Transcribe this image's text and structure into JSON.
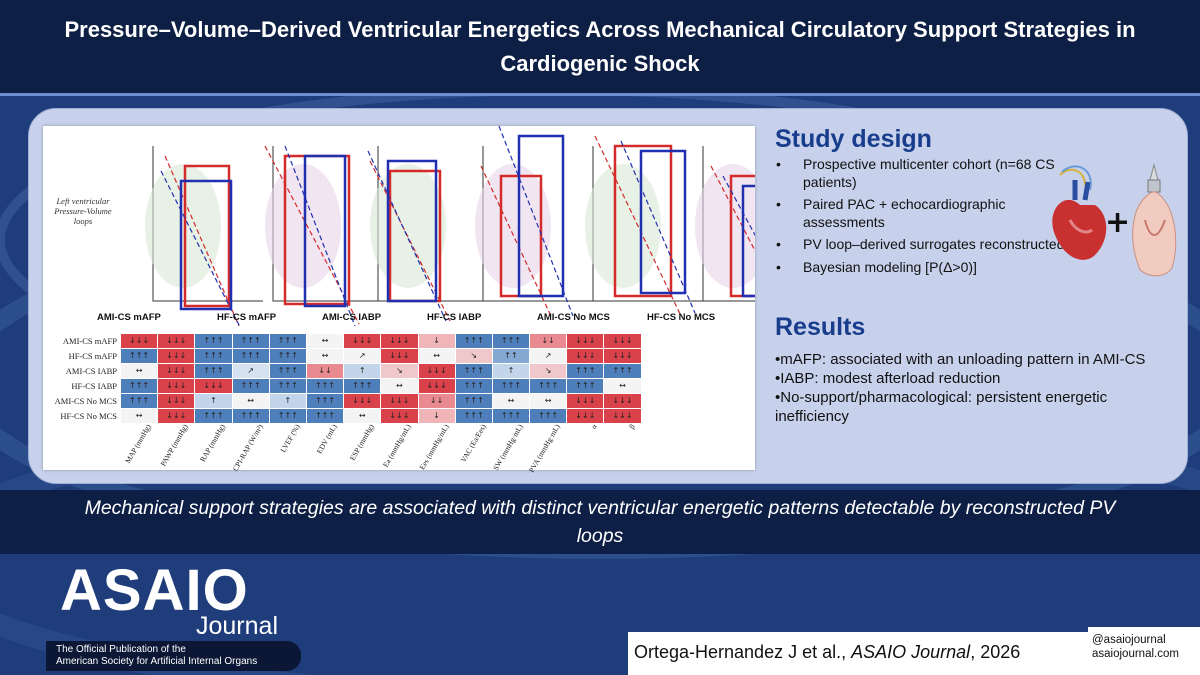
{
  "header": {
    "title": "Pressure–Volume–Derived Ventricular Energetics Across Mechanical Circulatory Support Strategies in Cardiogenic Shock"
  },
  "figure": {
    "lv_label": "Left ventricular Pressure-Volume loops",
    "loop_labels": [
      "AMI-CS mAFP",
      "HF-CS mAFP",
      "AMI-CS IABP",
      "HF-CS IABP",
      "AMI-CS No MCS",
      "HF-CS No MCS"
    ],
    "row_labels": [
      "AMI-CS mAFP",
      "HF-CS mAFP",
      "AMI-CS IABP",
      "HF-CS IABP",
      "AMI-CS No MCS",
      "HF-CS No MCS"
    ],
    "col_labels": [
      "MAP (mmHg)",
      "PAWP (mmHg)",
      "RAP (mmHg)",
      "CPI-RAP (W/m²)",
      "LVEF (%)",
      "EDV (mL)",
      "ESP (mmHg)",
      "Ea (mmHg/mL)",
      "Ees (mmHg/mL)",
      "VAC (Ea/Ees)",
      "SW (mmHg·mL)",
      "PVA (mmHg·mL)",
      "α",
      "β"
    ],
    "heatmap": [
      [
        {
          "t": "↓↓↓",
          "c": "#d9414b"
        },
        {
          "t": "↓↓↓",
          "c": "#d9414b"
        },
        {
          "t": "↑↑↑",
          "c": "#4e7fba"
        },
        {
          "t": "↑↑↑",
          "c": "#4e7fba"
        },
        {
          "t": "↑↑↑",
          "c": "#4e7fba"
        },
        {
          "t": "↔",
          "c": "#f4f4f4"
        },
        {
          "t": "↓↓↓",
          "c": "#d9414b"
        },
        {
          "t": "↓↓↓",
          "c": "#d9414b"
        },
        {
          "t": "↓",
          "c": "#f0b5b8"
        },
        {
          "t": "↑↑↑",
          "c": "#4e7fba"
        },
        {
          "t": "↑↑↑",
          "c": "#4e7fba"
        },
        {
          "t": "↓↓",
          "c": "#e98a90"
        },
        {
          "t": "↓↓↓",
          "c": "#d9414b"
        },
        {
          "t": "↓↓↓",
          "c": "#d9414b"
        }
      ],
      [
        {
          "t": "↑↑↑",
          "c": "#4e7fba"
        },
        {
          "t": "↓↓↓",
          "c": "#d9414b"
        },
        {
          "t": "↑↑↑",
          "c": "#4e7fba"
        },
        {
          "t": "↑↑↑",
          "c": "#4e7fba"
        },
        {
          "t": "↑↑↑",
          "c": "#4e7fba"
        },
        {
          "t": "↔",
          "c": "#f4f4f4"
        },
        {
          "t": "↗",
          "c": "#f4f4f4"
        },
        {
          "t": "↓↓↓",
          "c": "#d9414b"
        },
        {
          "t": "↔",
          "c": "#f4f4f4"
        },
        {
          "t": "↘",
          "c": "#f0c8cb"
        },
        {
          "t": "↑↑",
          "c": "#85a8d3"
        },
        {
          "t": "↗",
          "c": "#f4f4f4"
        },
        {
          "t": "↓↓↓",
          "c": "#d9414b"
        },
        {
          "t": "↓↓↓",
          "c": "#d9414b"
        }
      ],
      [
        {
          "t": "↔",
          "c": "#f4f4f4"
        },
        {
          "t": "↓↓↓",
          "c": "#d9414b"
        },
        {
          "t": "↑↑↑",
          "c": "#4e7fba"
        },
        {
          "t": "↗",
          "c": "#d6e2f0"
        },
        {
          "t": "↑↑↑",
          "c": "#4e7fba"
        },
        {
          "t": "↓↓",
          "c": "#e98a90"
        },
        {
          "t": "↑",
          "c": "#c3d5ea"
        },
        {
          "t": "↘",
          "c": "#f0c8cb"
        },
        {
          "t": "↓↓↓",
          "c": "#d9414b"
        },
        {
          "t": "↑↑↑",
          "c": "#4e7fba"
        },
        {
          "t": "↑",
          "c": "#c3d5ea"
        },
        {
          "t": "↘",
          "c": "#f0c8cb"
        },
        {
          "t": "↑↑↑",
          "c": "#4e7fba"
        },
        {
          "t": "↑↑↑",
          "c": "#4e7fba"
        }
      ],
      [
        {
          "t": "↑↑↑",
          "c": "#4e7fba"
        },
        {
          "t": "↓↓↓",
          "c": "#d9414b"
        },
        {
          "t": "↓↓↓",
          "c": "#d9414b"
        },
        {
          "t": "↑↑↑",
          "c": "#4e7fba"
        },
        {
          "t": "↑↑↑",
          "c": "#4e7fba"
        },
        {
          "t": "↑↑↑",
          "c": "#4e7fba"
        },
        {
          "t": "↑↑↑",
          "c": "#4e7fba"
        },
        {
          "t": "↔",
          "c": "#f4f4f4"
        },
        {
          "t": "↓↓↓",
          "c": "#d9414b"
        },
        {
          "t": "↑↑↑",
          "c": "#4e7fba"
        },
        {
          "t": "↑↑↑",
          "c": "#4e7fba"
        },
        {
          "t": "↑↑↑",
          "c": "#4e7fba"
        },
        {
          "t": "↑↑↑",
          "c": "#4e7fba"
        },
        {
          "t": "↔",
          "c": "#f4f4f4"
        }
      ],
      [
        {
          "t": "↑↑↑",
          "c": "#4e7fba"
        },
        {
          "t": "↓↓↓",
          "c": "#d9414b"
        },
        {
          "t": "↑",
          "c": "#c3d5ea"
        },
        {
          "t": "↔",
          "c": "#f4f4f4"
        },
        {
          "t": "↑",
          "c": "#c3d5ea"
        },
        {
          "t": "↑↑↑",
          "c": "#4e7fba"
        },
        {
          "t": "↓↓↓",
          "c": "#d9414b"
        },
        {
          "t": "↓↓↓",
          "c": "#d9414b"
        },
        {
          "t": "↓↓",
          "c": "#e98a90"
        },
        {
          "t": "↑↑↑",
          "c": "#4e7fba"
        },
        {
          "t": "↔",
          "c": "#f4f4f4"
        },
        {
          "t": "↔",
          "c": "#f4f4f4"
        },
        {
          "t": "↓↓↓",
          "c": "#d9414b"
        },
        {
          "t": "↓↓↓",
          "c": "#d9414b"
        }
      ],
      [
        {
          "t": "↔",
          "c": "#f4f4f4"
        },
        {
          "t": "↓↓↓",
          "c": "#d9414b"
        },
        {
          "t": "↑↑↑",
          "c": "#4e7fba"
        },
        {
          "t": "↑↑↑",
          "c": "#4e7fba"
        },
        {
          "t": "↑↑↑",
          "c": "#4e7fba"
        },
        {
          "t": "↑↑↑",
          "c": "#4e7fba"
        },
        {
          "t": "↔",
          "c": "#f4f4f4"
        },
        {
          "t": "↓↓↓",
          "c": "#d9414b"
        },
        {
          "t": "↓",
          "c": "#f0b5b8"
        },
        {
          "t": "↑↑↑",
          "c": "#4e7fba"
        },
        {
          "t": "↑↑↑",
          "c": "#4e7fba"
        },
        {
          "t": "↑↑↑",
          "c": "#4e7fba"
        },
        {
          "t": "↓↓↓",
          "c": "#d9414b"
        },
        {
          "t": "↓↓↓",
          "c": "#d9414b"
        }
      ]
    ]
  },
  "study_design": {
    "title": "Study design",
    "items": [
      "Prospective multicenter cohort (n=68 CS patients)",
      "Paired PAC + echocardiographic assessments",
      "PV loop–derived surrogates reconstructed",
      "Bayesian modeling [P(Δ>0)]"
    ]
  },
  "results": {
    "title": "Results",
    "items": [
      "•mAFP: associated with an unloading pattern in AMI-CS",
      "•IABP: modest afterload reduction",
      "•No-support/pharmacological: persistent energetic inefficiency"
    ]
  },
  "conclusion": {
    "text": "Mechanical support strategies are associated with distinct ventricular energetic patterns detectable by reconstructed PV loops"
  },
  "logo": {
    "main": "ASAIO",
    "sub": "Journal",
    "tagline_1": "The Official Publication of the",
    "tagline_2": "American Society for Artificial Internal Organs"
  },
  "citation": {
    "authors": "Ortega-Hernandez J et al.,",
    "journal": "ASAIO Journal",
    "year": ", 2026"
  },
  "social": {
    "handle": "@asaiojournal",
    "site": "asaiojournal.com"
  },
  "colors": {
    "navy": "#0e1f45",
    "panel": "#c7d1eb",
    "heading_blue": "#173d8c",
    "loop_red": "#d42a2a",
    "loop_blue": "#2030b0"
  }
}
